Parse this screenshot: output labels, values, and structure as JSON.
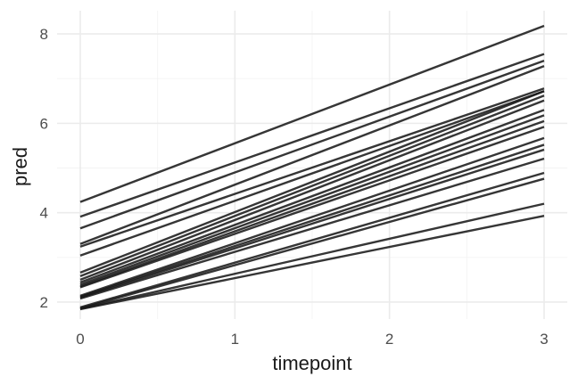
{
  "chart_data": {
    "type": "line",
    "title": "",
    "xlabel": "timepoint",
    "ylabel": "pred",
    "xlim": [
      -0.15,
      3.15
    ],
    "ylim": [
      1.62,
      8.52
    ],
    "x_ticks": [
      0,
      1,
      2,
      3
    ],
    "y_ticks": [
      2,
      4,
      6,
      8
    ],
    "x_tick_labels": [
      "0",
      "1",
      "2",
      "3"
    ],
    "y_tick_labels": [
      "2",
      "4",
      "6",
      "8"
    ],
    "grid": true,
    "legend": "none",
    "line_color": "#1a1a1a",
    "x": [
      0,
      3
    ],
    "series": [
      {
        "values": [
          4.24,
          8.18
        ]
      },
      {
        "values": [
          3.91,
          7.55
        ]
      },
      {
        "values": [
          3.65,
          7.4
        ]
      },
      {
        "values": [
          3.3,
          7.28
        ]
      },
      {
        "values": [
          3.24,
          6.78
        ]
      },
      {
        "values": [
          3.04,
          6.72
        ]
      },
      {
        "values": [
          2.66,
          6.72
        ]
      },
      {
        "values": [
          2.58,
          6.62
        ]
      },
      {
        "values": [
          2.5,
          6.51
        ]
      },
      {
        "values": [
          2.44,
          6.3
        ]
      },
      {
        "values": [
          2.39,
          6.18
        ]
      },
      {
        "values": [
          2.35,
          6.05
        ]
      },
      {
        "values": [
          2.33,
          5.92
        ]
      },
      {
        "values": [
          2.14,
          5.67
        ]
      },
      {
        "values": [
          2.12,
          5.52
        ]
      },
      {
        "values": [
          2.1,
          5.41
        ]
      },
      {
        "values": [
          2.08,
          5.21
        ]
      },
      {
        "values": [
          1.88,
          4.89
        ]
      },
      {
        "values": [
          1.86,
          4.76
        ]
      },
      {
        "values": [
          1.85,
          4.2
        ]
      },
      {
        "values": [
          1.84,
          3.93
        ]
      }
    ]
  }
}
